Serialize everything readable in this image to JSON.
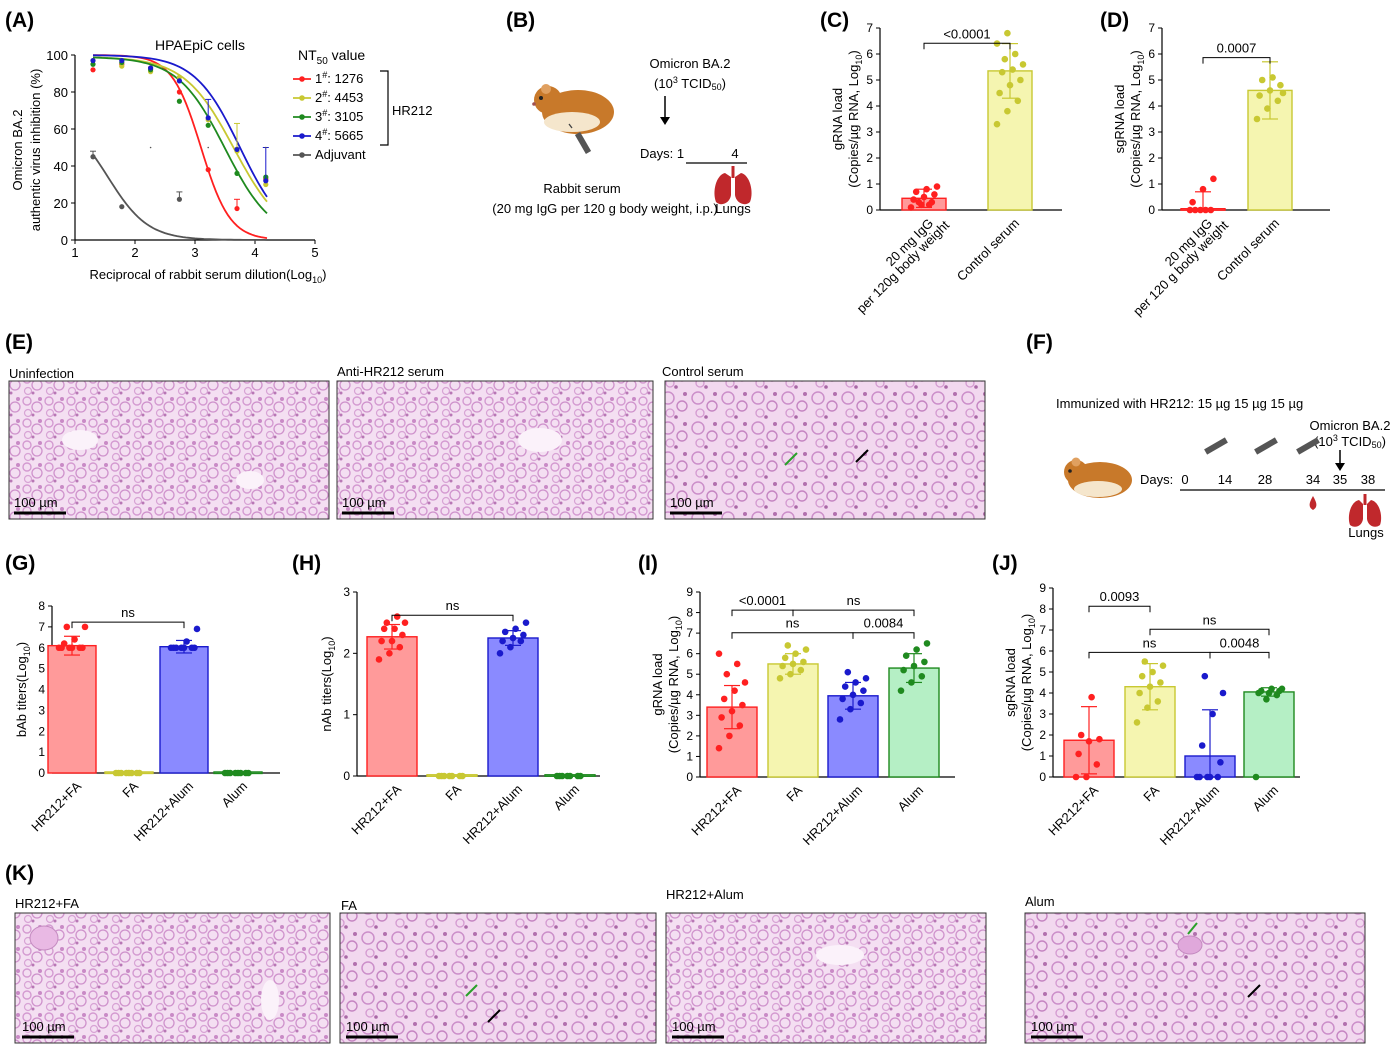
{
  "panel_letters": [
    "(A)",
    "(B)",
    "(C)",
    "(D)",
    "(E)",
    "(F)",
    "(G)",
    "(H)",
    "(I)",
    "(J)",
    "(K)"
  ],
  "colors": {
    "red": "#ff2020",
    "yellow": "#c8c832",
    "green": "#1f8a1f",
    "blue": "#1a1acc",
    "gray": "#555555",
    "dark_red": "#b81c1c",
    "tissue": "#d9a0d6",
    "tissue_bg": "#f4dff2"
  },
  "chart_data": [
    {
      "id": "A",
      "type": "line",
      "title": "HPAEpiC cells",
      "xlabel": "Reciprocal of rabbit serum dilution(Log",
      "xlabel_sub": "10",
      "xlabel_end": ")",
      "ylabel_line1": "Omicron BA.2",
      "ylabel_line2": "authentic virus inhibition (%)",
      "xlim": [
        1,
        5
      ],
      "ylim": [
        0,
        100
      ],
      "xticks": [
        "1",
        "2",
        "3",
        "4",
        "5"
      ],
      "yticks": [
        "0",
        "20",
        "40",
        "60",
        "80",
        "100"
      ],
      "legend_title": "NT",
      "legend_title_sub": "50",
      "legend_title_end": " value",
      "bracket_label": "HR212",
      "series": [
        {
          "name": "1",
          "sup": "#",
          "value": ": 1276",
          "color": "#ff2020",
          "x": [
            1.3,
            1.78,
            2.26,
            2.74,
            3.22,
            3.7,
            4.18
          ],
          "y": [
            92,
            95,
            93,
            80,
            38,
            17,
            33
          ],
          "err": [
            0,
            0,
            0,
            0,
            0,
            5,
            0
          ]
        },
        {
          "name": "2",
          "sup": "#",
          "value": ": 4453",
          "color": "#c8c832",
          "x": [
            1.3,
            1.78,
            2.26,
            2.74,
            3.22,
            3.7,
            4.18
          ],
          "y": [
            97,
            94,
            91,
            88,
            65,
            48,
            30
          ],
          "err": [
            0,
            0,
            0,
            0,
            0,
            15,
            0
          ]
        },
        {
          "name": "3",
          "sup": "#",
          "value": ": 3105",
          "color": "#1f8a1f",
          "x": [
            1.3,
            1.78,
            2.26,
            2.74,
            3.22,
            3.7,
            4.18
          ],
          "y": [
            95,
            96,
            92,
            75,
            62,
            36,
            34
          ],
          "err": [
            0,
            0,
            0,
            0,
            0,
            0,
            0
          ]
        },
        {
          "name": "4",
          "sup": "#",
          "value": ": 5665",
          "color": "#1a1acc",
          "x": [
            1.3,
            1.78,
            2.26,
            2.74,
            3.22,
            3.7,
            4.18
          ],
          "y": [
            97,
            97,
            93,
            86,
            66,
            49,
            32
          ],
          "err": [
            0,
            0,
            0,
            0,
            10,
            0,
            18
          ]
        },
        {
          "name": "Adjuvant",
          "sup": "",
          "value": "",
          "color": "#555555",
          "x": [
            1.3,
            1.78,
            2.26,
            2.74,
            3.22,
            3.7,
            4.18
          ],
          "y": [
            45,
            18,
            50,
            22,
            50,
            50,
            50
          ],
          "err": [
            3,
            0,
            0,
            4,
            0,
            0,
            0
          ]
        }
      ],
      "fits": [
        {
          "color": "#ff2020",
          "top": 100,
          "bottom": 0,
          "ec50": 3.1,
          "slope": 1.8
        },
        {
          "color": "#c8c832",
          "top": 99,
          "bottom": 0,
          "ec50": 3.65,
          "slope": 1.05
        },
        {
          "color": "#1f8a1f",
          "top": 99,
          "bottom": 0,
          "ec50": 3.5,
          "slope": 1.1
        },
        {
          "color": "#1a1acc",
          "top": 100,
          "bottom": 0,
          "ec50": 3.75,
          "slope": 1.15
        },
        {
          "color": "#555555",
          "top": 68,
          "bottom": 0,
          "ec50": 1.55,
          "slope": 1.3
        }
      ]
    },
    {
      "id": "C",
      "type": "bar",
      "ylabel_line1": "gRNA load",
      "ylabel_line2": "(Copies/µg RNA, Log",
      "ylabel_sub": "10",
      "ylabel_end": ")",
      "ylim": [
        0,
        7
      ],
      "yticks": [
        "0",
        "1",
        "2",
        "3",
        "4",
        "5",
        "6",
        "7"
      ],
      "categories": [
        "20 mg IgG\nper 120g body weight",
        "Control serum"
      ],
      "series": [
        {
          "color": "#ff2020",
          "fill": "#ff9a9a",
          "mean": 0.45,
          "sd": 0.35,
          "points": [
            0.1,
            0.2,
            0.3,
            0.4,
            0.5,
            0.6,
            0.7,
            0.8,
            0.9,
            0.3,
            0.2
          ]
        },
        {
          "color": "#c8c832",
          "fill": "#f5f5b0",
          "mean": 5.35,
          "sd": 1.05,
          "points": [
            3.3,
            3.8,
            4.2,
            4.5,
            4.8,
            5.0,
            5.3,
            5.4,
            5.6,
            5.8,
            6.0,
            6.4,
            6.8
          ]
        }
      ],
      "sig": [
        {
          "from": 0,
          "to": 1,
          "label": "<0.0001",
          "level": 6.95
        }
      ]
    },
    {
      "id": "D",
      "type": "bar",
      "ylabel_line1": "sgRNA load",
      "ylabel_line2": "(Copies/µg RNA, Log",
      "ylabel_sub": "10",
      "ylabel_end": ")",
      "ylim": [
        0,
        7
      ],
      "yticks": [
        "0",
        "1",
        "2",
        "3",
        "4",
        "5",
        "6",
        "7"
      ],
      "categories": [
        "20 mg IgG\nper 120 g body weight",
        "Control serum"
      ],
      "series": [
        {
          "color": "#ff2020",
          "fill": "#ff9a9a",
          "mean": 0.05,
          "sd": 0.65,
          "points": [
            0,
            0,
            0,
            0.3,
            0.8,
            1.2,
            0,
            0
          ]
        },
        {
          "color": "#c8c832",
          "fill": "#f5f5b0",
          "mean": 4.6,
          "sd": 1.1,
          "points": [
            3.5,
            3.9,
            4.2,
            4.4,
            4.6,
            4.8,
            5.0,
            5.1,
            4.5
          ]
        }
      ],
      "sig": [
        {
          "from": 0,
          "to": 1,
          "label": "0.0007",
          "level": 6.4
        }
      ]
    },
    {
      "id": "G",
      "type": "bar",
      "ylabel_line1": "bAb titers(Log",
      "ylabel_sub": "10",
      "ylabel_end": ")",
      "ylim": [
        0,
        8
      ],
      "yticks": [
        "0",
        "1",
        "2",
        "3",
        "4",
        "5",
        "6",
        "7",
        "8"
      ],
      "categories": [
        "HR212+FA",
        "FA",
        "HR212+Alum",
        "Alum"
      ],
      "series": [
        {
          "color": "#ff2020",
          "fill": "#ff9a9a",
          "mean": 6.1,
          "sd": 0.45,
          "points": [
            6.0,
            6.0,
            6.0,
            6.0,
            6.0,
            6.0,
            6.2,
            6.4,
            7.0,
            7.0
          ]
        },
        {
          "color": "#c8c832",
          "fill": "#f5f5b0",
          "mean": 0.05,
          "sd": 0,
          "points": [
            0,
            0,
            0,
            0,
            0,
            0,
            0,
            0
          ]
        },
        {
          "color": "#1a1acc",
          "fill": "#8a8aff",
          "mean": 6.05,
          "sd": 0.3,
          "points": [
            6.0,
            6.0,
            6.0,
            6.0,
            6.0,
            6.0,
            6.0,
            6.3,
            6.9
          ]
        },
        {
          "color": "#1f8a1f",
          "fill": "#b5efc5",
          "mean": 0.05,
          "sd": 0,
          "points": [
            0,
            0,
            0,
            0,
            0,
            0,
            0,
            0
          ]
        }
      ],
      "sig": [
        {
          "from": 0,
          "to": 2,
          "label": "ns",
          "level": 7.9
        }
      ]
    },
    {
      "id": "H",
      "type": "bar",
      "ylabel_line1": "nAb titers(Log",
      "ylabel_sub": "10",
      "ylabel_end": ")",
      "ylim": [
        0,
        3
      ],
      "yticks": [
        "0",
        "1",
        "2",
        "3"
      ],
      "categories": [
        "HR212+FA",
        "FA",
        "HR212+Alum",
        "Alum"
      ],
      "series": [
        {
          "color": "#ff2020",
          "fill": "#ff9a9a",
          "mean": 2.27,
          "sd": 0.2,
          "points": [
            1.9,
            2.0,
            2.1,
            2.2,
            2.2,
            2.3,
            2.4,
            2.4,
            2.5,
            2.5,
            2.6
          ]
        },
        {
          "color": "#c8c832",
          "fill": "#f5f5b0",
          "mean": 0.02,
          "sd": 0,
          "points": [
            0,
            0,
            0,
            0,
            0,
            0,
            0
          ]
        },
        {
          "color": "#1a1acc",
          "fill": "#8a8aff",
          "mean": 2.25,
          "sd": 0.12,
          "points": [
            2.0,
            2.1,
            2.2,
            2.2,
            2.25,
            2.3,
            2.35,
            2.4,
            2.5
          ]
        },
        {
          "color": "#1f8a1f",
          "fill": "#b5efc5",
          "mean": 0.02,
          "sd": 0,
          "points": [
            0,
            0,
            0,
            0,
            0,
            0,
            0
          ]
        }
      ],
      "sig": [
        {
          "from": 0,
          "to": 2,
          "label": "ns",
          "level": 2.85
        }
      ]
    },
    {
      "id": "I",
      "type": "bar",
      "ylabel_line1": "gRNA load",
      "ylabel_line2": "(Copies/µg RNA, Log",
      "ylabel_sub": "10",
      "ylabel_end": ")",
      "ylim": [
        0,
        9
      ],
      "yticks": [
        "0",
        "1",
        "2",
        "3",
        "4",
        "5",
        "6",
        "7",
        "8",
        "9"
      ],
      "categories": [
        "HR212+FA",
        "FA",
        "HR212+Alum",
        "Alum"
      ],
      "series": [
        {
          "color": "#ff2020",
          "fill": "#ff9a9a",
          "mean": 3.4,
          "sd": 1.05,
          "points": [
            1.4,
            2.0,
            2.5,
            2.9,
            3.2,
            3.5,
            3.8,
            4.2,
            4.6,
            5.0,
            5.5,
            6.0
          ]
        },
        {
          "color": "#c8c832",
          "fill": "#f5f5b0",
          "mean": 5.5,
          "sd": 0.5,
          "points": [
            4.8,
            5.0,
            5.2,
            5.4,
            5.5,
            5.6,
            5.8,
            6.0,
            6.2,
            6.4
          ]
        },
        {
          "color": "#1a1acc",
          "fill": "#8a8aff",
          "mean": 3.95,
          "sd": 0.65,
          "points": [
            2.8,
            3.3,
            3.6,
            3.8,
            4.0,
            4.2,
            4.4,
            4.6,
            4.8,
            5.1
          ]
        },
        {
          "color": "#1f8a1f",
          "fill": "#b5efc5",
          "mean": 5.3,
          "sd": 0.7,
          "points": [
            4.2,
            4.6,
            4.9,
            5.2,
            5.4,
            5.6,
            5.9,
            6.2,
            6.5
          ]
        }
      ],
      "sig": [
        {
          "from": 0,
          "to": 1,
          "label": "<0.0001",
          "level": 8.8
        },
        {
          "from": 1,
          "to": 3,
          "label": "ns",
          "level": 8.8
        },
        {
          "from": 0,
          "to": 2,
          "label": "ns",
          "level": 7.7
        },
        {
          "from": 2,
          "to": 3,
          "label": "0.0084",
          "level": 7.7
        }
      ]
    },
    {
      "id": "J",
      "type": "bar",
      "ylabel_line1": "sgRNA load",
      "ylabel_line2": "(Copies/µg RNA, Log",
      "ylabel_sub": "10",
      "ylabel_end": ")",
      "ylim": [
        0,
        9
      ],
      "yticks": [
        "0",
        "1",
        "2",
        "3",
        "4",
        "5",
        "6",
        "7",
        "8",
        "9"
      ],
      "categories": [
        "HR212+FA",
        "FA",
        "HR212+Alum",
        "Alum"
      ],
      "series": [
        {
          "color": "#ff2020",
          "fill": "#ff9a9a",
          "mean": 1.75,
          "sd": 1.6,
          "points": [
            0,
            0,
            0.6,
            1.1,
            1.7,
            1.8,
            2.0,
            3.8
          ]
        },
        {
          "color": "#c8c832",
          "fill": "#f5f5b0",
          "mean": 4.3,
          "sd": 1.1,
          "points": [
            2.6,
            3.3,
            3.6,
            4.0,
            4.3,
            4.5,
            4.8,
            5.0,
            5.3,
            5.5
          ]
        },
        {
          "color": "#1a1acc",
          "fill": "#8a8aff",
          "mean": 1.0,
          "sd": 2.2,
          "points": [
            0,
            0,
            0,
            0,
            0,
            0.7,
            1.5,
            3.0,
            4.0,
            4.8
          ]
        },
        {
          "color": "#1f8a1f",
          "fill": "#b5efc5",
          "mean": 4.05,
          "sd": 0.2,
          "points": [
            0,
            3.7,
            3.9,
            4.0,
            4.0,
            4.1,
            4.1,
            4.2,
            4.2
          ]
        }
      ],
      "sig": [
        {
          "from": 0,
          "to": 1,
          "label": "0.0093",
          "level": 8.8
        },
        {
          "from": 1,
          "to": 3,
          "label": "ns",
          "level": 7.7
        },
        {
          "from": 0,
          "to": 2,
          "label": "ns",
          "level": 6.6
        },
        {
          "from": 2,
          "to": 3,
          "label": "0.0048",
          "level": 6.6
        }
      ]
    }
  ],
  "panelB": {
    "virus": "Omicron BA.2",
    "dose_open": "(10",
    "dose_sup": "3",
    "dose_unit": " TCID",
    "dose_sub": "50",
    "dose_close": ")",
    "days_label": "Days: ",
    "day1": "1",
    "day4": "4",
    "serum_label": "Rabbit serum",
    "serum_detail": "(20 mg IgG per 120 g body weight, i.p.)",
    "organ_label": "Lungs"
  },
  "panelE": {
    "images": [
      {
        "label": "Uninfection",
        "scale": "100 µm"
      },
      {
        "label": "Anti-HR212 serum",
        "scale": "100 µm"
      },
      {
        "label": "Control serum",
        "scale": "100 µm"
      }
    ]
  },
  "panelF": {
    "immunized": "Immunized with HR212: 15 µg  15 µg  15 µg",
    "virus": "Omicron BA.2",
    "dose_open": "(10",
    "dose_sup": "3",
    "dose_unit": " TCID",
    "dose_sub": "50",
    "dose_close": ")",
    "days_label": "Days:",
    "days": [
      "0",
      "14",
      "28",
      "34",
      "35",
      "38"
    ],
    "organ_label": "Lungs"
  },
  "panelK": {
    "images": [
      {
        "label": "HR212+FA",
        "scale": "100 µm"
      },
      {
        "label": "FA",
        "scale": "100 µm"
      },
      {
        "label": "HR212+Alum",
        "scale": "100 µm"
      },
      {
        "label": "Alum",
        "scale": "100 µm"
      }
    ]
  }
}
